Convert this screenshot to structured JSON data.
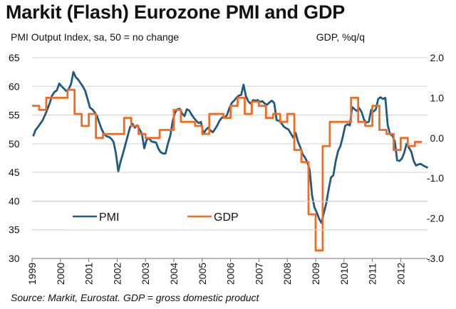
{
  "chart_data": {
    "type": "line",
    "title": "Markit (Flash) Eurozone PMI and GDP",
    "left_axis_label": "PMI Output Index, sa, 50 = no change",
    "right_axis_label": "GDP, %q/q",
    "source": "Source: Markit, Eurostat. GDP = gross domestic product",
    "left_ylim": [
      30,
      65
    ],
    "left_yticks": [
      "65",
      "60",
      "55",
      "50",
      "45",
      "40",
      "35",
      "30"
    ],
    "right_ylim": [
      -3.0,
      2.0
    ],
    "right_yticks": [
      "2.0",
      "1.0",
      "0.0",
      "-1.0",
      "-2.0",
      "-3.0"
    ],
    "x_ticks": [
      "1999",
      "2000",
      "2001",
      "2002",
      "2003",
      "2004",
      "2005",
      "2006",
      "2007",
      "2008",
      "2009",
      "2010",
      "2011",
      "2012"
    ],
    "grid": true,
    "legend": {
      "placement": "bottom-left",
      "entries": [
        "PMI",
        "GDP"
      ]
    },
    "colors": {
      "PMI": "#1f5a85",
      "GDP": "#f26b21",
      "grid": "#d9d9d9",
      "axis": "#777777"
    },
    "series": [
      {
        "name": "PMI",
        "axis": "left",
        "frequency": "monthly",
        "start": "1999-01",
        "values": [
          51.3,
          52.4,
          52.9,
          53.5,
          54.1,
          55.0,
          56.0,
          57.1,
          58.4,
          59.0,
          59.3,
          60.5,
          60.0,
          59.6,
          59.2,
          59.5,
          60.4,
          62.5,
          61.6,
          61.2,
          60.6,
          60.0,
          59.2,
          57.8,
          56.3,
          56.0,
          55.5,
          54.8,
          53.6,
          52.5,
          51.7,
          51.3,
          51.2,
          50.9,
          50.3,
          48.3,
          45.2,
          46.9,
          48.3,
          49.8,
          51.4,
          52.9,
          53.5,
          52.8,
          53.2,
          52.5,
          51.7,
          49.2,
          50.7,
          51.0,
          50.4,
          50.3,
          50.2,
          49.1,
          48.5,
          48.3,
          48.3,
          50.0,
          51.4,
          53.9,
          55.4,
          56.0,
          56.1,
          55.3,
          54.8,
          56.0,
          55.8,
          55.1,
          54.5,
          54.0,
          53.6,
          53.8,
          51.7,
          52.4,
          52.8,
          52.3,
          52.0,
          52.6,
          53.3,
          54.1,
          54.6,
          54.5,
          55.0,
          56.2,
          57.1,
          57.5,
          58.0,
          58.4,
          58.5,
          60.3,
          58.3,
          57.4,
          57.0,
          57.6,
          57.5,
          57.6,
          57.3,
          57.4,
          57.0,
          56.8,
          57.2,
          57.5,
          57.1,
          54.1,
          54.0,
          53.6,
          53.0,
          52.7,
          52.5,
          51.8,
          51.1,
          51.9,
          50.4,
          49.4,
          48.2,
          47.6,
          46.8,
          45.4,
          41.0,
          38.9,
          38.0,
          36.9,
          36.2,
          38.0,
          39.6,
          42.0,
          44.1,
          44.5,
          46.9,
          48.7,
          49.6,
          51.2,
          53.1,
          53.4,
          53.2,
          56.4,
          56.0,
          55.7,
          56.2,
          55.5,
          54.2,
          53.7,
          53.8,
          55.9,
          55.6,
          56.0,
          57.8,
          58.1,
          57.8,
          58.0,
          53.3,
          51.7,
          51.4,
          50.4,
          47.1,
          47.0,
          47.4,
          48.4,
          50.0,
          49.3,
          48.6,
          47.0,
          46.2,
          46.4,
          46.5,
          46.2,
          46.0,
          45.8
        ]
      },
      {
        "name": "GDP",
        "axis": "right",
        "frequency": "quarterly",
        "start": "1999-Q1",
        "values": [
          0.8,
          0.7,
          1.0,
          1.0,
          1.0,
          1.2,
          0.6,
          0.3,
          0.6,
          0.0,
          0.1,
          0.1,
          0.1,
          0.5,
          0.3,
          0.1,
          0.0,
          0.0,
          0.2,
          0.2,
          0.7,
          0.4,
          0.4,
          0.3,
          0.1,
          0.6,
          0.6,
          0.5,
          0.8,
          1.0,
          0.6,
          0.9,
          0.8,
          0.5,
          0.6,
          0.4,
          0.6,
          -0.3,
          -0.6,
          -1.9,
          -2.8,
          -0.2,
          0.4,
          0.4,
          0.4,
          1.0,
          0.4,
          0.3,
          0.8,
          0.2,
          0.1,
          -0.3,
          0.0,
          -0.2,
          -0.1
        ]
      }
    ]
  }
}
